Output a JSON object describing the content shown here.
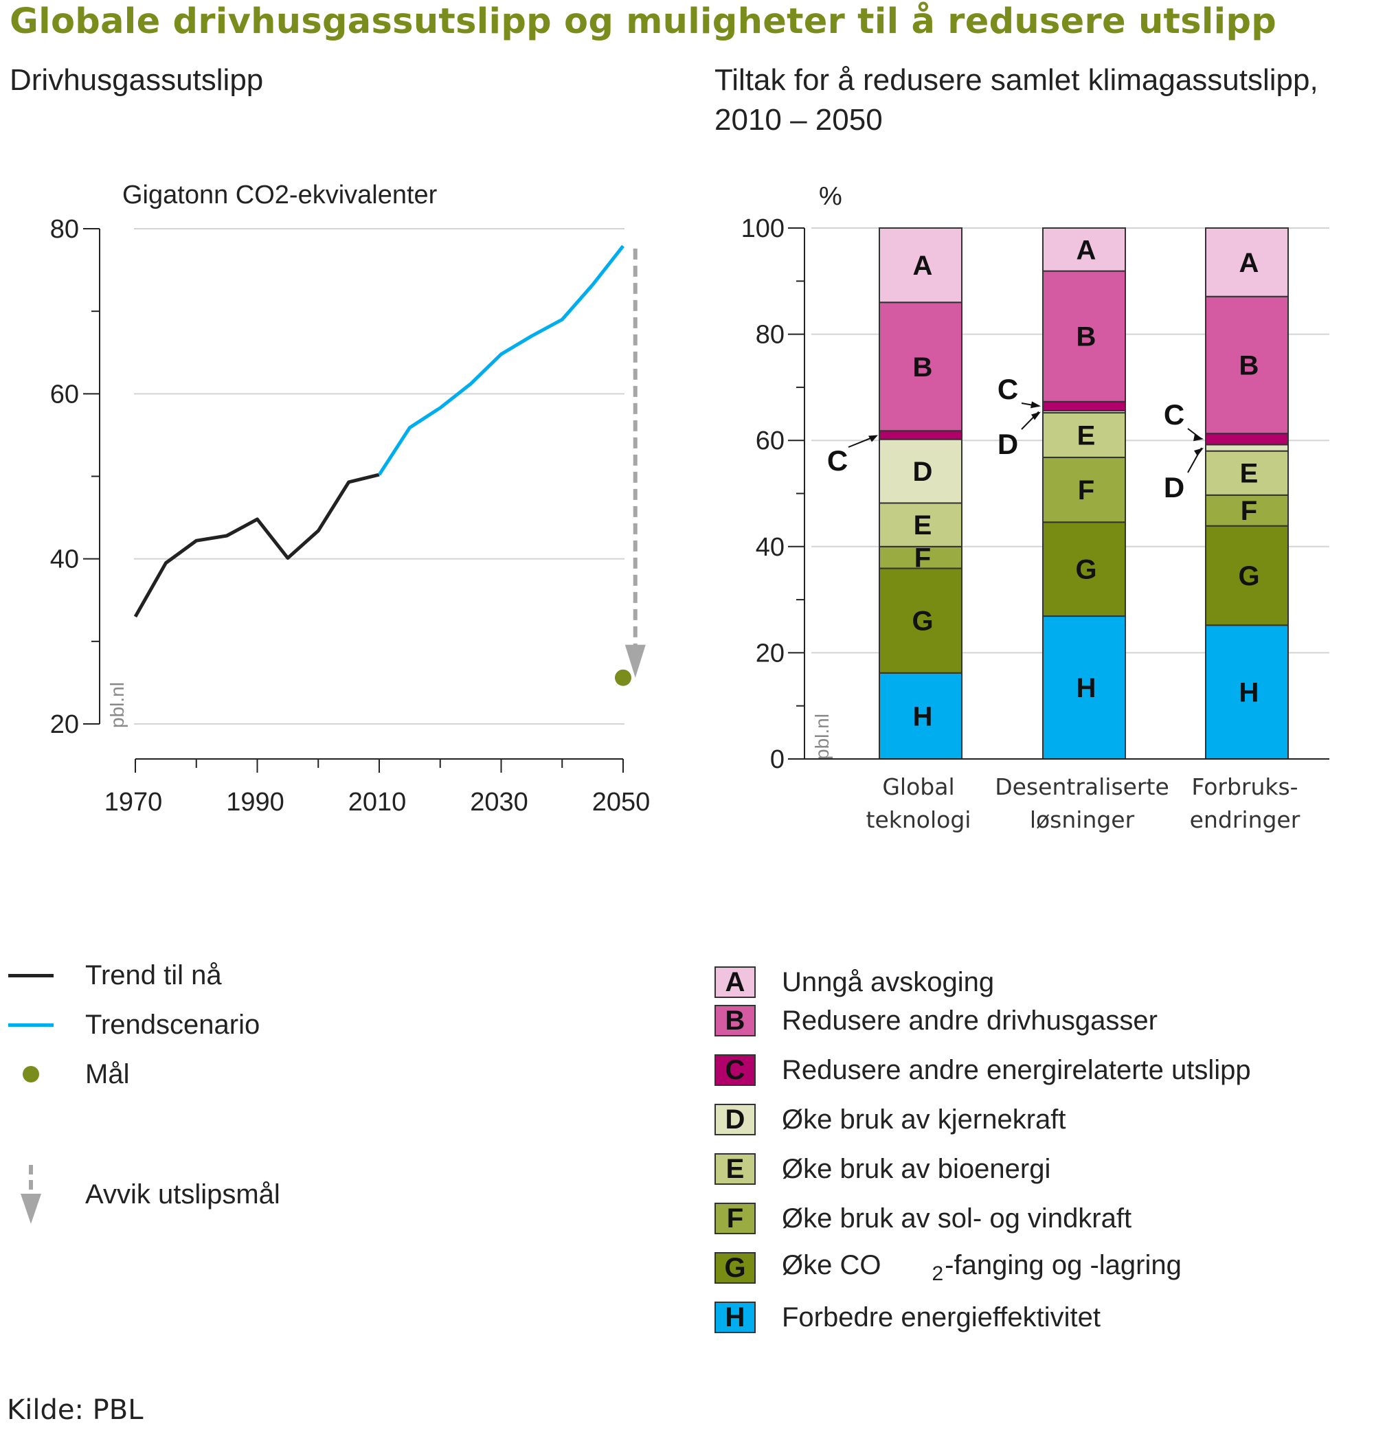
{
  "title": "Globale drivhusgassutslipp og muligheter til å redusere utslipp",
  "source": "Kilde: PBL",
  "watermark": "pbl.nl",
  "chart_data": [
    {
      "type": "line",
      "title": "Drivhusgassutslipp",
      "ylabel": "Gigatonn CO2-ekvivalenter",
      "ylim": [
        20,
        80
      ],
      "yticks": [
        20,
        40,
        60,
        80
      ],
      "xlim": [
        1970,
        2050
      ],
      "xticks": [
        1970,
        1990,
        2010,
        2030,
        2050
      ],
      "series": [
        {
          "name": "Trend til nå",
          "color": "#222222",
          "x": [
            1970,
            1975,
            1980,
            1985,
            1990,
            1995,
            2000,
            2005,
            2010
          ],
          "y": [
            33,
            39.5,
            42.2,
            42.8,
            44.8,
            40.1,
            43.4,
            49.3,
            50.2
          ]
        },
        {
          "name": "Trendscenario",
          "color": "#00aeef",
          "x": [
            2010,
            2015,
            2020,
            2025,
            2030,
            2035,
            2040,
            2045,
            2050
          ],
          "y": [
            50.2,
            55.9,
            58.3,
            61.2,
            64.8,
            67.0,
            69.0,
            73.2,
            77.9
          ]
        }
      ],
      "target": {
        "name": "Mål",
        "x": 2050,
        "y": 25.6,
        "color": "#7a8c1c"
      },
      "gap_arrow": {
        "name": "Avvik utslipsmål",
        "x": 2052,
        "from": 77.6,
        "to": 25.6,
        "color": "#a6a6a6"
      },
      "grid": true
    },
    {
      "type": "bar",
      "stacked": true,
      "title": "Tiltak for å redusere samlet klimagassutslipp, 2010 – 2050",
      "ylabel": "%",
      "ylim": [
        0,
        100
      ],
      "yticks": [
        0,
        20,
        40,
        60,
        80,
        100
      ],
      "categories": [
        "Global teknologi",
        "Desentraliserte løsninger",
        "Forbruks-endringer"
      ],
      "category_lines": [
        [
          "Global",
          "teknologi"
        ],
        [
          "Desentraliserte",
          "løsninger"
        ],
        [
          "Forbruks-",
          "endringer"
        ]
      ],
      "series": [
        {
          "name": "H",
          "color": "#00aeef",
          "values": [
            16.2,
            26.9,
            25.2
          ]
        },
        {
          "name": "G",
          "color": "#788c14",
          "values": [
            19.7,
            17.7,
            18.7
          ]
        },
        {
          "name": "F",
          "color": "#9aab42",
          "values": [
            4.1,
            12.2,
            5.8
          ]
        },
        {
          "name": "E",
          "color": "#c3cd85",
          "values": [
            8.2,
            8.4,
            8.3
          ]
        },
        {
          "name": "D",
          "color": "#dfe4be",
          "values": [
            12.0,
            0.4,
            1.2
          ]
        },
        {
          "name": "C",
          "color": "#b1006a",
          "values": [
            1.6,
            1.7,
            2.1
          ]
        },
        {
          "name": "B",
          "color": "#d45ba1",
          "values": [
            24.2,
            24.6,
            25.8
          ]
        },
        {
          "name": "A",
          "color": "#f0c4de",
          "values": [
            14.0,
            8.1,
            12.9
          ]
        }
      ],
      "grid": true
    }
  ],
  "left_legend": [
    {
      "label": "Trend til nå",
      "kind": "line",
      "color": "#222222"
    },
    {
      "label": "Trendscenario",
      "kind": "line",
      "color": "#00aeef"
    },
    {
      "label": "Mål",
      "kind": "dot",
      "color": "#7a8c1c"
    },
    {
      "label": "Avvik utslipsmål",
      "kind": "arrow",
      "color": "#a6a6a6"
    }
  ],
  "right_legend": [
    {
      "key": "A",
      "label": "Unngå avskoging",
      "color": "#f0c4de"
    },
    {
      "key": "B",
      "label": "Redusere andre drivhusgasser",
      "color": "#d45ba1"
    },
    {
      "key": "C",
      "label": "Redusere andre energirelaterte utslipp",
      "color": "#b1006a"
    },
    {
      "key": "D",
      "label": "Øke bruk av kjernekraft",
      "color": "#dfe4be"
    },
    {
      "key": "E",
      "label": "Øke bruk av bioenergi",
      "color": "#c3cd85"
    },
    {
      "key": "F",
      "label": "Øke bruk av sol- og vindkraft",
      "color": "#9aab42"
    },
    {
      "key": "G",
      "label_pre": "Øke CO",
      "label_sub": "2",
      "label_post": "-fanging og -lagring",
      "color": "#788c14"
    },
    {
      "key": "H",
      "label": "Forbedre energieffektivitet",
      "color": "#00aeef"
    }
  ]
}
